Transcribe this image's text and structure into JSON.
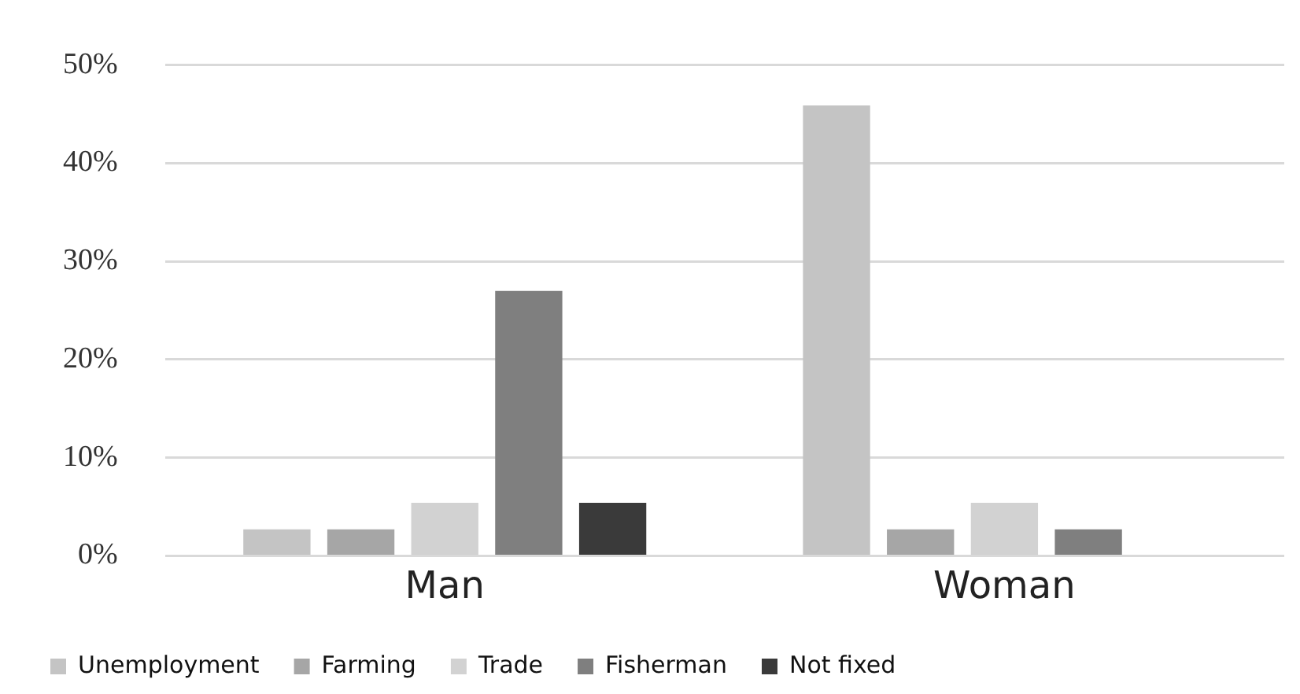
{
  "chart_data": {
    "type": "bar",
    "categories": [
      "Man",
      "Woman"
    ],
    "series": [
      {
        "name": "Unemployment",
        "color": "#c4c4c4",
        "values": [
          2.7,
          45.9
        ]
      },
      {
        "name": "Farming",
        "color": "#a6a6a6",
        "values": [
          2.7,
          2.7
        ]
      },
      {
        "name": "Trade",
        "color": "#d2d2d2",
        "values": [
          5.4,
          5.4
        ]
      },
      {
        "name": "Fisherman",
        "color": "#7f7f7f",
        "values": [
          27.0,
          2.7
        ]
      },
      {
        "name": "Not fixed",
        "color": "#3a3a3a",
        "values": [
          5.4,
          null
        ]
      }
    ],
    "ylim": [
      0,
      50
    ],
    "yticks": [
      {
        "value": 0,
        "label": "0%"
      },
      {
        "value": 10,
        "label": "10%"
      },
      {
        "value": 20,
        "label": "20%"
      },
      {
        "value": 30,
        "label": "30%"
      },
      {
        "value": 40,
        "label": "40%"
      },
      {
        "value": 50,
        "label": "50%"
      }
    ],
    "grid": "y",
    "legend": "bottom"
  }
}
